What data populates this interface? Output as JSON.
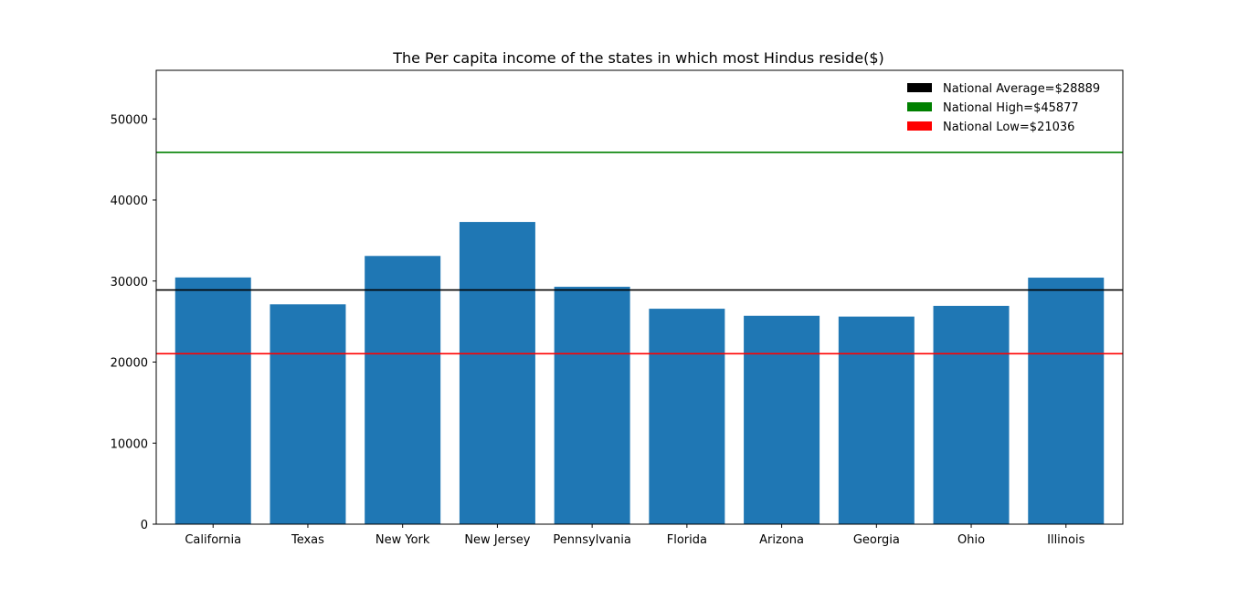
{
  "chart_data": {
    "type": "bar",
    "title": "The Per capita income of the states in which most Hindus reside($)",
    "xlabel": "",
    "ylabel": "",
    "categories": [
      "California",
      "Texas",
      "New York",
      "New Jersey",
      "Pennsylvania",
      "Florida",
      "Arizona",
      "Georgia",
      "Ohio",
      "Illinois"
    ],
    "values": [
      30441,
      27125,
      33095,
      37288,
      29291,
      26582,
      25715,
      25615,
      26937,
      30417
    ],
    "ylim": [
      0,
      56000
    ],
    "yticks": [
      0,
      10000,
      20000,
      30000,
      40000,
      50000
    ],
    "grid": false,
    "bar_color": "#1f77b4",
    "reference_lines": [
      {
        "label": "National Average=$28889",
        "value": 28889,
        "color": "#000000"
      },
      {
        "label": "National High=$45877",
        "value": 45877,
        "color": "#008000"
      },
      {
        "label": "National Low=$21036",
        "value": 21036,
        "color": "#ff0000"
      }
    ],
    "legend_placement": "top-right"
  }
}
